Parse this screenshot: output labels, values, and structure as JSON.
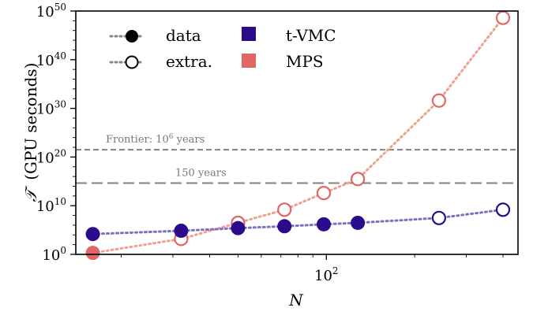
{
  "chart_data": {
    "type": "scatter",
    "xlabel": "N",
    "ylabel_symbol": "𝒯",
    "ylabel_unit": "(GPU seconds)",
    "xscale": "log",
    "yscale": "log",
    "xlim": [
      14,
      450
    ],
    "ylim": [
      1,
      1e+50
    ],
    "y_tick_labels": [
      {
        "base": "10",
        "exp": "0",
        "value": 1
      },
      {
        "base": "10",
        "exp": "10",
        "value": 10000000000.0
      },
      {
        "base": "10",
        "exp": "20",
        "value": 1e+20
      },
      {
        "base": "10",
        "exp": "30",
        "value": 1e+30
      },
      {
        "base": "10",
        "exp": "40",
        "value": 1e+40
      },
      {
        "base": "10",
        "exp": "50",
        "value": 1e+50
      }
    ],
    "x_tick_labels": [
      {
        "base": "10",
        "exp": "2",
        "value": 100
      }
    ],
    "legend": {
      "placement": "top-left",
      "style_entries": [
        "data",
        "extra."
      ],
      "method_entries": [
        "t-VMC",
        "MPS"
      ]
    },
    "reference_lines": [
      {
        "label_prefix": "Frontier: 10",
        "label_exp": "6",
        "label_suffix": " years",
        "value": 3.2e+21,
        "color": "#808080"
      },
      {
        "label": "150 years",
        "value": 450000000000000.0,
        "color": "#808080"
      }
    ],
    "series": [
      {
        "name": "t-VMC",
        "color": "#2a0b8c",
        "line_color": "#7a72c0",
        "data": [
          {
            "x": 16,
            "y": 15000.0
          },
          {
            "x": 32,
            "y": 70000.0
          },
          {
            "x": 50,
            "y": 250000.0
          },
          {
            "x": 72,
            "y": 600000.0
          },
          {
            "x": 98,
            "y": 1500000.0
          },
          {
            "x": 128,
            "y": 3000000.0
          }
        ],
        "extrapolated": [
          {
            "x": 242,
            "y": 30000000.0
          },
          {
            "x": 400,
            "y": 1500000000.0
          }
        ]
      },
      {
        "name": "MPS",
        "color": "#e06666",
        "line_color": "#f0a090",
        "data": [
          {
            "x": 16,
            "y": 2.0
          }
        ],
        "extrapolated": [
          {
            "x": 32,
            "y": 1500.0
          },
          {
            "x": 50,
            "y": 3000000.0
          },
          {
            "x": 72,
            "y": 1500000000.0
          },
          {
            "x": 98,
            "y": 4000000000000.0
          },
          {
            "x": 128,
            "y": 3000000000000000.0
          },
          {
            "x": 242,
            "y": 4e+31
          },
          {
            "x": 400,
            "y": 4e+48
          }
        ]
      }
    ]
  }
}
